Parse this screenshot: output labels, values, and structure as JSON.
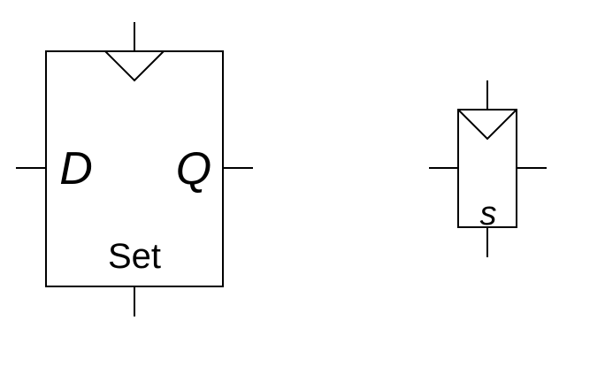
{
  "diagram": {
    "flipflop_large": {
      "input_label": "D",
      "output_label": "Q",
      "set_label": "Set"
    },
    "flipflop_small": {
      "set_label": "s"
    },
    "colors": {
      "stroke": "#000000",
      "background": "#ffffff"
    }
  }
}
